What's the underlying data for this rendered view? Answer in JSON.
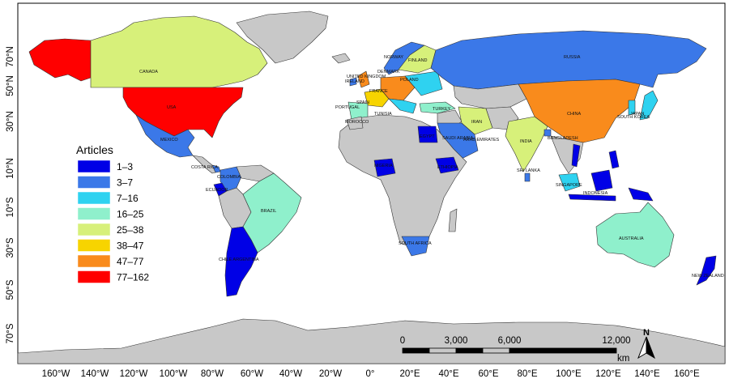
{
  "colors": {
    "no_data": "#c8c8c8",
    "c1": "#0000e6",
    "c2": "#3b78e8",
    "c3": "#2fd2f0",
    "c4": "#8ff0cc",
    "c5": "#d7f07a",
    "c6": "#f7d400",
    "c7": "#f98b1c",
    "c8": "#ff0000"
  },
  "legend": {
    "title": "Articles",
    "classes": [
      {
        "label": "1–3",
        "color": "#0000e6"
      },
      {
        "label": "3–7",
        "color": "#3b78e8"
      },
      {
        "label": "7–16",
        "color": "#2fd2f0"
      },
      {
        "label": "16–25",
        "color": "#8ff0cc"
      },
      {
        "label": "25–38",
        "color": "#d7f07a"
      },
      {
        "label": "38–47",
        "color": "#f7d400"
      },
      {
        "label": "47–77",
        "color": "#f98b1c"
      },
      {
        "label": "77–162",
        "color": "#ff0000"
      }
    ]
  },
  "axes": {
    "lat_labels": [
      "70°N",
      "50°N",
      "30°N",
      "10°N",
      "10°S",
      "30°S",
      "50°S",
      "70°S"
    ],
    "lon_labels": [
      "160°W",
      "140°W",
      "120°W",
      "100°W",
      "80°W",
      "60°W",
      "40°W",
      "20°W",
      "0°",
      "20°E",
      "40°E",
      "60°E",
      "80°E",
      "100°E",
      "120°E",
      "140°E",
      "160°E"
    ]
  },
  "scale_bar": {
    "ticks": [
      "0",
      "3,000",
      "6,000",
      "12,000"
    ],
    "unit": "km"
  },
  "north_arrow": {
    "label": "N"
  },
  "country_labels": {
    "canada": "CANADA",
    "usa": "USA",
    "mexico": "MEXICO",
    "brazil": "BRAZIL",
    "chile_argentina": "CHILE ARGENTINA",
    "colombia": "COLOMBIA",
    "ecuador": "ECUADOR",
    "costa_rica": "COSTA RICA",
    "russia": "RUSSIA",
    "china": "CHINA",
    "india": "INDIA",
    "iran": "IRAN",
    "turkey": "TURKEY",
    "egypt": "EGYPT",
    "saudi_arabia": "SAUDI ARABIA",
    "uae": "ARAB EMIRATES",
    "ethiopia": "ETHIOPIA",
    "nigeria": "NIGERIA",
    "south_africa": "SOUTH AFRICA",
    "australia": "AUSTRALIA",
    "new_zealand": "NEW ZEALAND",
    "sri_lanka": "SRI LANKA",
    "bangladesh": "BANGLADESH",
    "portugal": "PORTUGAL",
    "spain": "SPAIN",
    "france": "FRANCE",
    "norway": "NORWAY",
    "finland": "FINLAND",
    "denmark": "DENMARK",
    "ireland": "IRELAND",
    "united_kingdom": "UNITED KINGDOM",
    "poland": "POLAND",
    "morocco": "MOROCCO",
    "tunisia": "TUNISIA",
    "japan": "JAPAN",
    "south_korea": "SOUTH KOREA",
    "singapore": "SINGAPORE",
    "indonesia": "INDONESIA"
  }
}
